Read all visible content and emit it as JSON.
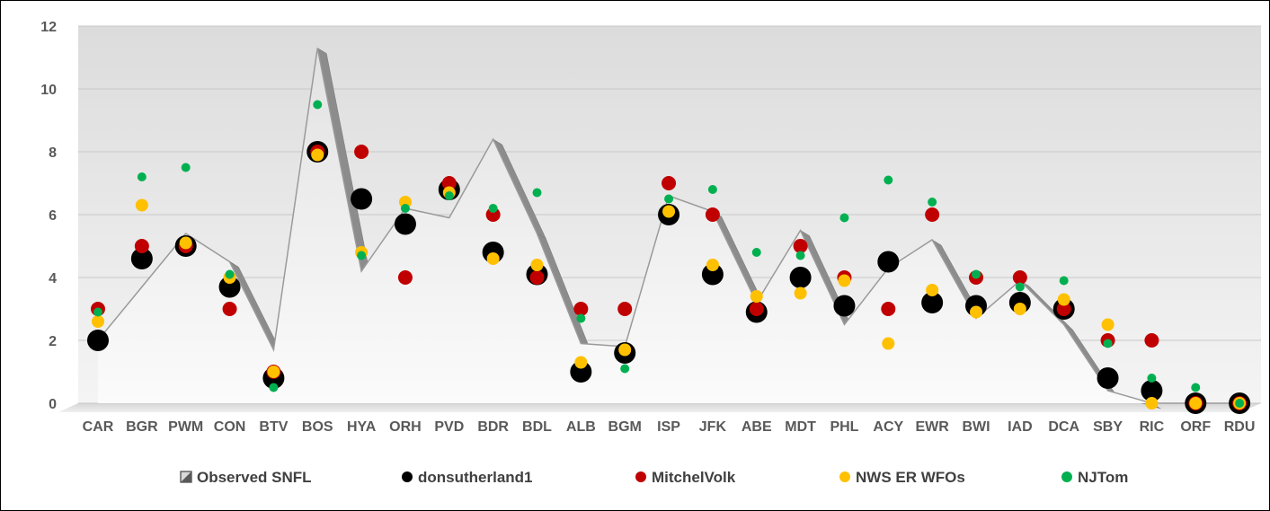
{
  "chart_data": {
    "type": "scatter",
    "categories": [
      "CAR",
      "BGR",
      "PWM",
      "CON",
      "BTV",
      "BOS",
      "HYA",
      "ORH",
      "PVD",
      "BDR",
      "BDL",
      "ALB",
      "BGM",
      "ISP",
      "JFK",
      "ABE",
      "MDT",
      "PHL",
      "ACY",
      "EWR",
      "BWI",
      "IAD",
      "DCA",
      "SBY",
      "RIC",
      "ORF",
      "RDU"
    ],
    "ylim": [
      0,
      12
    ],
    "yticks": [
      "0",
      "2",
      "4",
      "6",
      "8",
      "10",
      "12"
    ],
    "grid": true,
    "legend_position": "bottom",
    "series": [
      {
        "name": "Observed SNFL",
        "render": "area",
        "color": "#e6e6e6",
        "values": [
          2.0,
          3.7,
          5.4,
          4.5,
          1.7,
          11.3,
          4.2,
          6.2,
          5.9,
          8.4,
          5.4,
          1.9,
          1.8,
          6.6,
          6.1,
          3.2,
          5.5,
          2.5,
          4.3,
          5.2,
          2.7,
          3.9,
          2.5,
          0.4,
          0.0,
          0.0,
          0.0
        ]
      },
      {
        "name": "donsutherland1",
        "render": "marker",
        "color": "#000000",
        "values": [
          2.0,
          4.6,
          5.0,
          3.7,
          0.8,
          8.0,
          6.5,
          5.7,
          6.8,
          4.8,
          4.1,
          1.0,
          1.6,
          6.0,
          4.1,
          2.9,
          4.0,
          3.1,
          4.5,
          3.2,
          3.1,
          3.2,
          3.0,
          0.8,
          0.4,
          0.0,
          0.0
        ]
      },
      {
        "name": "MitchelVolk",
        "render": "marker",
        "color": "#c00000",
        "values": [
          3.0,
          5.0,
          5.0,
          3.0,
          1.0,
          8.0,
          8.0,
          4.0,
          7.0,
          6.0,
          4.0,
          3.0,
          3.0,
          7.0,
          6.0,
          3.0,
          5.0,
          4.0,
          3.0,
          6.0,
          4.0,
          4.0,
          3.0,
          2.0,
          2.0,
          0.0,
          0.0
        ]
      },
      {
        "name": "NWS ER WFOs",
        "render": "marker",
        "color": "#ffc000",
        "values": [
          2.6,
          6.3,
          5.1,
          4.0,
          1.0,
          7.9,
          4.8,
          6.4,
          6.7,
          4.6,
          4.4,
          1.3,
          1.7,
          6.1,
          4.4,
          3.4,
          3.5,
          3.9,
          1.9,
          3.6,
          2.9,
          3.0,
          3.3,
          2.5,
          0.0,
          0.0,
          0.0
        ]
      },
      {
        "name": "NJTom",
        "render": "marker",
        "color": "#00b050",
        "values": [
          2.9,
          7.2,
          7.5,
          4.1,
          0.5,
          9.5,
          4.7,
          6.2,
          6.6,
          6.2,
          6.7,
          2.7,
          1.1,
          6.5,
          6.8,
          4.8,
          4.7,
          5.9,
          7.1,
          6.4,
          4.1,
          3.7,
          3.9,
          1.9,
          0.8,
          0.5,
          0.0
        ]
      }
    ]
  }
}
